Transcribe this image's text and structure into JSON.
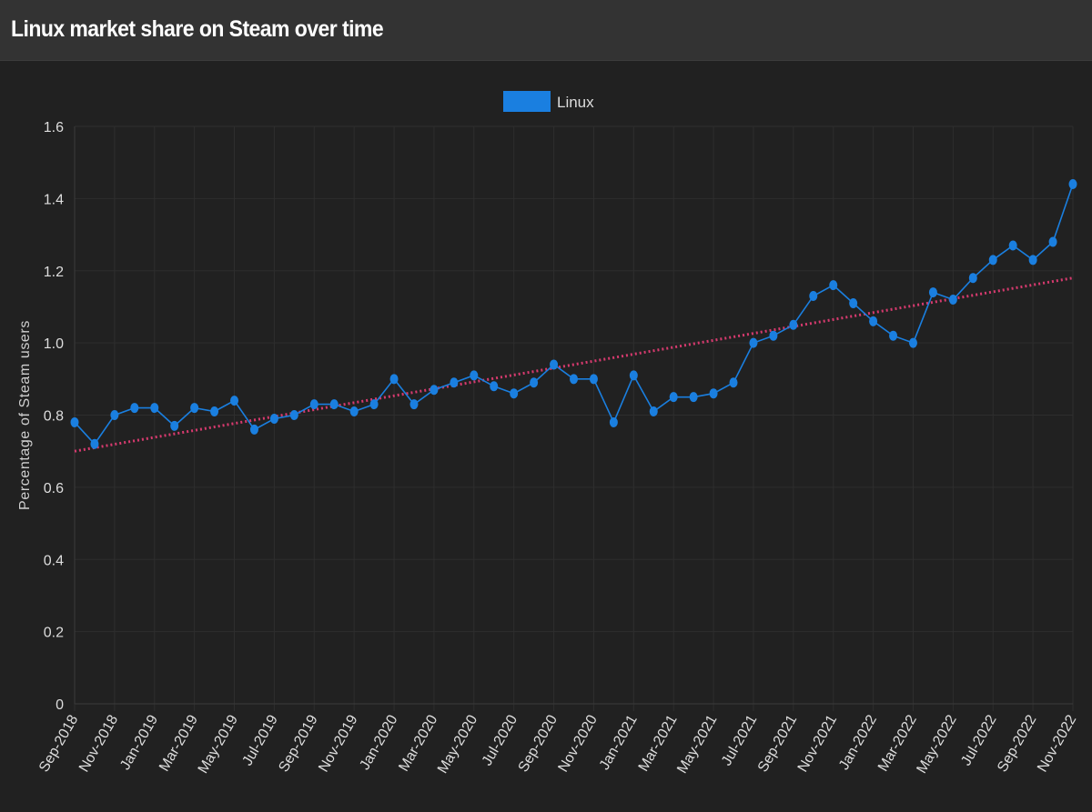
{
  "page": {
    "title": "Linux market share on Steam over time"
  },
  "colors": {
    "background": "#212121",
    "header": "#333333",
    "series": "#1a7fe0",
    "trendline": "#d63a6e",
    "grid": "#2e2e2e",
    "text": "#dddddd"
  },
  "chart_data": {
    "type": "line",
    "title": "Linux market share on Steam over time",
    "ylabel": "Percentage of Steam users",
    "xlabel": "",
    "ylim": [
      0,
      1.6
    ],
    "yticks": [
      "0",
      "0.2",
      "0.4",
      "0.6",
      "0.8",
      "1.0",
      "1.2",
      "1.4",
      "1.6"
    ],
    "ytick_values": [
      0,
      0.2,
      0.4,
      0.6,
      0.8,
      1.0,
      1.2,
      1.4,
      1.6
    ],
    "grid": true,
    "legend": {
      "placement": "top-center",
      "entries": [
        "Linux"
      ]
    },
    "x": [
      "Sep-2018",
      "Oct-2018",
      "Nov-2018",
      "Dec-2018",
      "Jan-2019",
      "Feb-2019",
      "Mar-2019",
      "Apr-2019",
      "May-2019",
      "Jun-2019",
      "Jul-2019",
      "Aug-2019",
      "Sep-2019",
      "Oct-2019",
      "Nov-2019",
      "Dec-2019",
      "Jan-2020",
      "Feb-2020",
      "Mar-2020",
      "Apr-2020",
      "May-2020",
      "Jun-2020",
      "Jul-2020",
      "Aug-2020",
      "Sep-2020",
      "Oct-2020",
      "Nov-2020",
      "Dec-2020",
      "Jan-2021",
      "Feb-2021",
      "Mar-2021",
      "Apr-2021",
      "May-2021",
      "Jun-2021",
      "Jul-2021",
      "Aug-2021",
      "Sep-2021",
      "Oct-2021",
      "Nov-2021",
      "Dec-2021",
      "Jan-2022",
      "Feb-2022",
      "Mar-2022",
      "Apr-2022",
      "May-2022",
      "Jun-2022",
      "Jul-2022",
      "Aug-2022",
      "Sep-2022",
      "Oct-2022",
      "Nov-2022"
    ],
    "xtick_labels": [
      "Sep-2018",
      "Nov-2018",
      "Jan-2019",
      "Mar-2019",
      "May-2019",
      "Jul-2019",
      "Sep-2019",
      "Nov-2019",
      "Jan-2020",
      "Mar-2020",
      "May-2020",
      "Jul-2020",
      "Sep-2020",
      "Nov-2020",
      "Jan-2021",
      "Mar-2021",
      "May-2021",
      "Jul-2021",
      "Sep-2021",
      "Nov-2021",
      "Jan-2022",
      "Mar-2022",
      "May-2022",
      "Jul-2022",
      "Sep-2022",
      "Nov-2022"
    ],
    "series": [
      {
        "name": "Linux",
        "values": [
          0.78,
          0.72,
          0.8,
          0.82,
          0.82,
          0.77,
          0.82,
          0.81,
          0.84,
          0.76,
          0.79,
          0.8,
          0.83,
          0.83,
          0.81,
          0.83,
          0.9,
          0.83,
          0.87,
          0.89,
          0.91,
          0.88,
          0.86,
          0.89,
          0.94,
          0.9,
          0.9,
          0.78,
          0.91,
          0.81,
          0.85,
          0.85,
          0.86,
          0.89,
          1.0,
          1.02,
          1.05,
          1.13,
          1.16,
          1.11,
          1.06,
          1.02,
          1.0,
          1.14,
          1.12,
          1.18,
          1.23,
          1.27,
          1.23,
          1.28,
          1.44
        ]
      }
    ],
    "trendline": {
      "style": "dotted",
      "start": 0.7,
      "end": 1.18
    }
  }
}
